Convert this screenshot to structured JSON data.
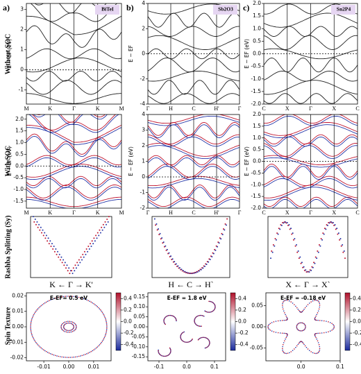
{
  "figure": {
    "row_labels": [
      "Without SOC",
      "With SOC",
      "Rashba Splitting (Sy)",
      "Spin Texture"
    ],
    "columns": [
      {
        "letter": "a)",
        "material": "BiTeI",
        "bands": {
          "ylabel": "E − EF (eV)",
          "ylim": [
            -1.7,
            3.3
          ],
          "yticks": [
            3,
            2,
            1,
            0,
            -1
          ],
          "kpoints": [
            "M",
            "K",
            "Γ",
            "K",
            "M"
          ]
        },
        "soc": {
          "ylabel": "E − EF (eV)",
          "ylim": [
            -1.8,
            2.2
          ],
          "yticks": [
            {
              "value": 2,
              "label": "2.0"
            },
            1.5,
            {
              "value": 1,
              "label": "1.0"
            },
            0.5,
            {
              "value": 0,
              "label": "0.0"
            },
            -0.5,
            {
              "value": -1,
              "label": "-1.0"
            },
            -1.5
          ],
          "kpoints": [
            "M",
            "K",
            "Γ",
            "K",
            "M"
          ]
        },
        "rashba": {
          "caption": "K ← Γ → K'"
        },
        "spin": {
          "title": "E-EF= 0.5 eV",
          "xlim": [
            -0.017,
            0.017
          ],
          "xticks": [
            -0.01,
            {
              "value": 0,
              "label": "0.00"
            },
            0.01
          ],
          "ylim": [
            -0.022,
            0.022
          ],
          "yticks": [
            0.02,
            0.01,
            {
              "value": 0,
              "label": "0.00"
            },
            -0.01,
            -0.02
          ],
          "clim": [
            -0.5,
            0.5
          ],
          "cticks": [
            0.4,
            0.2,
            {
              "value": 0,
              "label": "0.0"
            },
            -0.2,
            -0.4
          ]
        }
      },
      {
        "letter": "b)",
        "material": "Sb2O3",
        "bands": {
          "ylabel": "E − EF",
          "ylim": [
            -4,
            4
          ],
          "yticks": [
            4,
            2,
            0,
            -2,
            -4
          ],
          "kpoints": [
            "Γ",
            "H",
            "C",
            "H'",
            "Γ"
          ]
        },
        "soc": {
          "ylabel": "E − EF (eV)",
          "ylim": [
            -2,
            4
          ],
          "yticks": [
            4,
            3,
            2,
            1,
            0,
            -1,
            -2
          ],
          "kpoints": [
            "Γ",
            "H",
            "C",
            "H'",
            "Γ"
          ]
        },
        "rashba": {
          "caption": "H ← C → H`"
        },
        "spin": {
          "title": "E-EF = 1.8 eV",
          "xlim": [
            -0.14,
            0.14
          ],
          "xticks": [
            -0.1,
            {
              "value": 0,
              "label": "0.0"
            },
            0.1
          ],
          "ylim": [
            -0.17,
            0.17
          ],
          "yticks": [
            0.15,
            {
              "value": 0.1,
              "label": "0.10"
            },
            0.05,
            {
              "value": 0,
              "label": "0.00"
            },
            -0.05,
            {
              "value": -0.1,
              "label": "-0.10"
            },
            -0.15
          ],
          "clim": [
            -0.5,
            0.5
          ],
          "cticks": [
            0.4,
            0.2,
            {
              "value": 0,
              "label": "0.0"
            },
            -0.2,
            -0.4
          ]
        }
      },
      {
        "letter": "c)",
        "material": "Sn2P4",
        "bands": {
          "ylabel": "E − EF (eV)",
          "ylim": [
            -2,
            2
          ],
          "yticks": [
            {
              "value": 2,
              "label": "2.0"
            },
            1.5,
            {
              "value": 1,
              "label": "1.0"
            },
            0.5,
            {
              "value": 0,
              "label": "0.0"
            },
            -0.5,
            {
              "value": -1,
              "label": "-1.0"
            },
            -1.5,
            {
              "value": -2,
              "label": "-2.0"
            }
          ],
          "kpoints": [
            "C",
            "X",
            "Γ",
            "X",
            "C"
          ]
        },
        "soc": {
          "ylabel": "E − EF (eV)",
          "ylim": [
            -2,
            2
          ],
          "yticks": [
            {
              "value": 2,
              "label": "2.0"
            },
            1.5,
            {
              "value": 1,
              "label": "1.0"
            },
            0.5,
            {
              "value": 0,
              "label": "0.0"
            },
            -0.5,
            {
              "value": -1,
              "label": "-1.0"
            },
            -1.5,
            {
              "value": -2,
              "label": "-2.0"
            }
          ],
          "kpoints": [
            "C",
            "X",
            "Γ",
            "X",
            "C"
          ]
        },
        "rashba": {
          "caption": "X ← Γ → X`"
        },
        "spin": {
          "title": "E-EF = -0.18 eV",
          "xlim": [
            -0.09,
            0.1
          ],
          "xticks": [
            {
              "value": 0,
              "label": "0.0"
            },
            0.1
          ],
          "ylim": [
            -0.08,
            0.08
          ],
          "yticks": [
            0.05,
            {
              "value": 0,
              "label": "0.00"
            },
            -0.05
          ],
          "clim": [
            -0.5,
            0.5
          ],
          "cticks": [
            0.4,
            0.2,
            {
              "value": 0,
              "label": "0.0"
            },
            -0.2,
            -0.4
          ]
        }
      }
    ]
  }
}
